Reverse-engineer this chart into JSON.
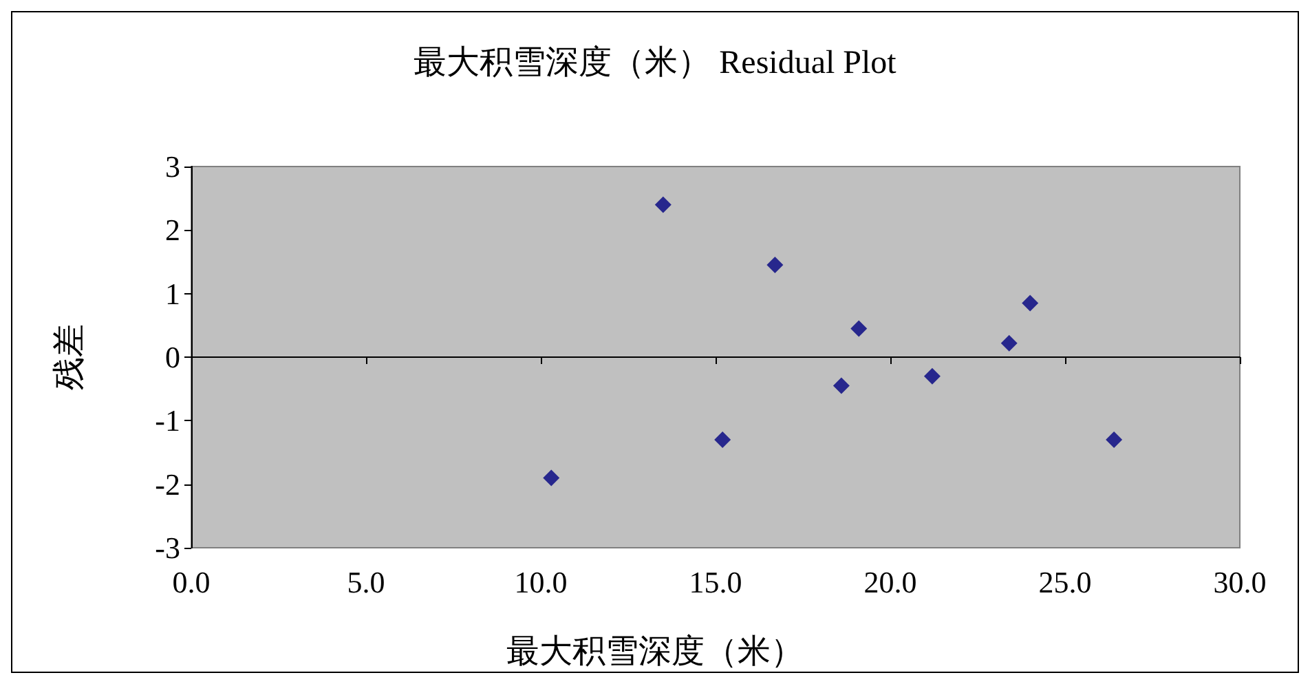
{
  "chart_data": {
    "type": "scatter",
    "title": "最大积雪深度（米） Residual Plot",
    "xlabel": "最大积雪深度（米）",
    "ylabel": "残差",
    "x": [
      10.3,
      13.5,
      15.2,
      16.7,
      18.6,
      19.1,
      21.2,
      23.4,
      24.0,
      26.4
    ],
    "series": [
      {
        "color": "#000080",
        "values": [
          -1.9,
          2.4,
          -1.3,
          1.45,
          -0.45,
          0.45,
          -0.3,
          0.22,
          0.85,
          -1.3
        ]
      }
    ],
    "marker": "diamond",
    "xlim": [
      0,
      30
    ],
    "xticks": [
      {
        "value": 0,
        "label": "0.0"
      },
      {
        "value": 5,
        "label": "5.0"
      },
      {
        "value": 10,
        "label": "10.0"
      },
      {
        "value": 15,
        "label": "15.0"
      },
      {
        "value": 20,
        "label": "20.0"
      },
      {
        "value": 25,
        "label": "25.0"
      },
      {
        "value": 30,
        "label": "30.0"
      }
    ],
    "ylim": [
      -3,
      3
    ],
    "yticks": [
      -3,
      -2,
      -1,
      0,
      1,
      2,
      3
    ]
  }
}
